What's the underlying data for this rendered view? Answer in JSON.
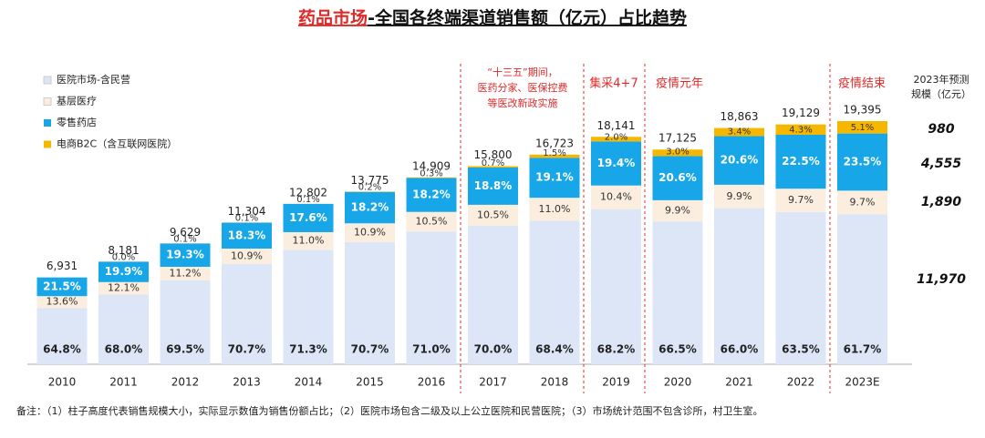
{
  "chart_data": {
    "type": "bar",
    "title_parts": [
      "药品市场",
      "-全国各终端渠道销售额（亿元）占比趋势"
    ],
    "categories": [
      "2010",
      "2011",
      "2012",
      "2013",
      "2014",
      "2015",
      "2016",
      "2017",
      "2018",
      "2019",
      "2020",
      "2021",
      "2022",
      "2023E"
    ],
    "totals": [
      6931,
      8181,
      9629,
      11304,
      12802,
      13775,
      14909,
      15800,
      16723,
      18141,
      17125,
      18863,
      19129,
      19395
    ],
    "total_labels": [
      "6,931",
      "8,181",
      "9,629",
      "11,304",
      "12,802",
      "13,775",
      "14,909",
      "15,800",
      "16,723",
      "18,141",
      "17,125",
      "18,863",
      "19,129",
      "19,395"
    ],
    "series": [
      {
        "name": "医院市场-含民营",
        "color": "#dce6f7",
        "values": [
          64.8,
          68.0,
          69.5,
          70.7,
          71.3,
          70.7,
          71.0,
          70.0,
          68.4,
          68.2,
          66.5,
          66.0,
          63.5,
          61.7
        ],
        "value_labels": [
          "64.8%",
          "68.0%",
          "69.5%",
          "70.7%",
          "71.3%",
          "70.7%",
          "71.0%",
          "70.0%",
          "68.4%",
          "68.2%",
          "66.5%",
          "66.0%",
          "63.5%",
          "61.7%"
        ]
      },
      {
        "name": "基层医疗",
        "color": "#fbeedf",
        "values": [
          13.6,
          12.1,
          11.2,
          10.9,
          11.0,
          10.9,
          10.5,
          10.5,
          11.0,
          10.4,
          9.9,
          9.9,
          9.7,
          9.7
        ],
        "value_labels": [
          "13.6%",
          "12.1%",
          "11.2%",
          "10.9%",
          "11.0%",
          "10.9%",
          "10.5%",
          "10.5%",
          "11.0%",
          "10.4%",
          "9.9%",
          "9.9%",
          "9.7%",
          "9.7%"
        ]
      },
      {
        "name": "零售药店",
        "color": "#17a7e8",
        "values": [
          21.5,
          19.9,
          19.3,
          18.3,
          17.6,
          18.2,
          18.2,
          18.8,
          19.1,
          19.4,
          20.6,
          20.6,
          22.5,
          23.5
        ],
        "value_labels": [
          "21.5%",
          "19.9%",
          "19.3%",
          "18.3%",
          "17.6%",
          "18.2%",
          "18.2%",
          "18.8%",
          "19.1%",
          "19.4%",
          "20.6%",
          "20.6%",
          "22.5%",
          "23.5%"
        ]
      },
      {
        "name": "电商B2C（含互联网医院）",
        "color": "#f5b700",
        "values": [
          null,
          0.0,
          0.1,
          0.1,
          0.1,
          0.2,
          0.3,
          0.7,
          1.5,
          2.0,
          3.0,
          3.4,
          4.3,
          5.1
        ],
        "value_labels": [
          null,
          "0.0%",
          "0.1%",
          "0.1%",
          "0.1%",
          "0.2%",
          "0.3%",
          "0.7%",
          "1.5%",
          "2.0%",
          "3.0%",
          "3.4%",
          "4.3%",
          "5.1%"
        ]
      }
    ],
    "annotations": [
      {
        "lines": [
          "“十三五”期间，",
          "医药分家、医保控费",
          "等医改新政实施"
        ]
      },
      {
        "lines": [
          "集采4+7"
        ]
      },
      {
        "lines": [
          "疫情元年"
        ]
      },
      {
        "lines": [
          "疫情结束"
        ]
      }
    ],
    "forecast": {
      "title_lines": [
        "2023年预测",
        "规模（亿元）"
      ],
      "values": [
        980,
        4555,
        1890,
        11970
      ],
      "value_labels": [
        "980",
        "4,555",
        "1,890",
        "11,970"
      ]
    },
    "footnote": "备注：（1）柱子高度代表销售规模大小，实际显示数值为销售份额占比；（2）医院市场包含二级及以上公立医院和民营医院；（3）市场统计范围不包含诊所，村卫生室。"
  }
}
